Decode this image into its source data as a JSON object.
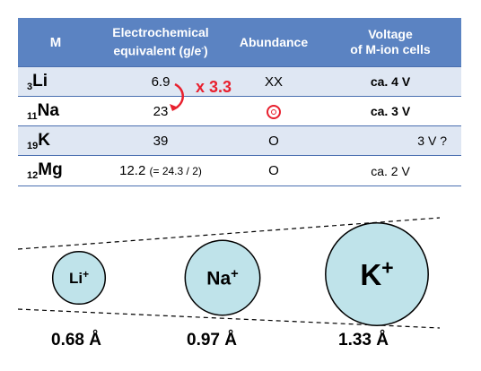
{
  "table": {
    "headers": [
      "M",
      "Electrochemical equivalent (g/e",
      "Abundance",
      "Voltage of M-ion cells"
    ],
    "header_sup": "-",
    "header_paren_close": ")",
    "header_col3_line1": "Voltage",
    "header_col3_line2": "of M-ion cells",
    "header_col1_line1": "Electrochemical",
    "header_col1_line2": "equivalent (g/e",
    "rows": [
      {
        "sub": "3",
        "el": "Li",
        "eq": "6.9",
        "eq_note": "",
        "abund": "XX",
        "volt": "ca. 4 V"
      },
      {
        "sub": "11",
        "el": "Na",
        "eq": "23",
        "eq_note": "",
        "abund": "",
        "abund_icon": "double-circle-icon",
        "volt": "ca. 3 V"
      },
      {
        "sub": "19",
        "el": "K",
        "eq": "39",
        "eq_note": "",
        "abund": "O",
        "volt": "3 V ?"
      },
      {
        "sub": "12",
        "el": "Mg",
        "eq": "12.2",
        "eq_note": "(= 24.3 / 2)",
        "abund": "O",
        "volt": "ca. 2 V"
      }
    ],
    "ratio_label": "x 3.3",
    "accent_color": "#e8202e",
    "header_color": "#5b83c2"
  },
  "ions": [
    {
      "name": "Li",
      "charge": "+",
      "radius_label": "0.68 Å",
      "radius_value": 0.68
    },
    {
      "name": "Na",
      "charge": "+",
      "radius_label": "0.97 Å",
      "radius_value": 0.97
    },
    {
      "name": "K",
      "charge": "+",
      "radius_label": "1.33 Å",
      "radius_value": 1.33
    }
  ],
  "ion_fill": "#bfe3ea"
}
